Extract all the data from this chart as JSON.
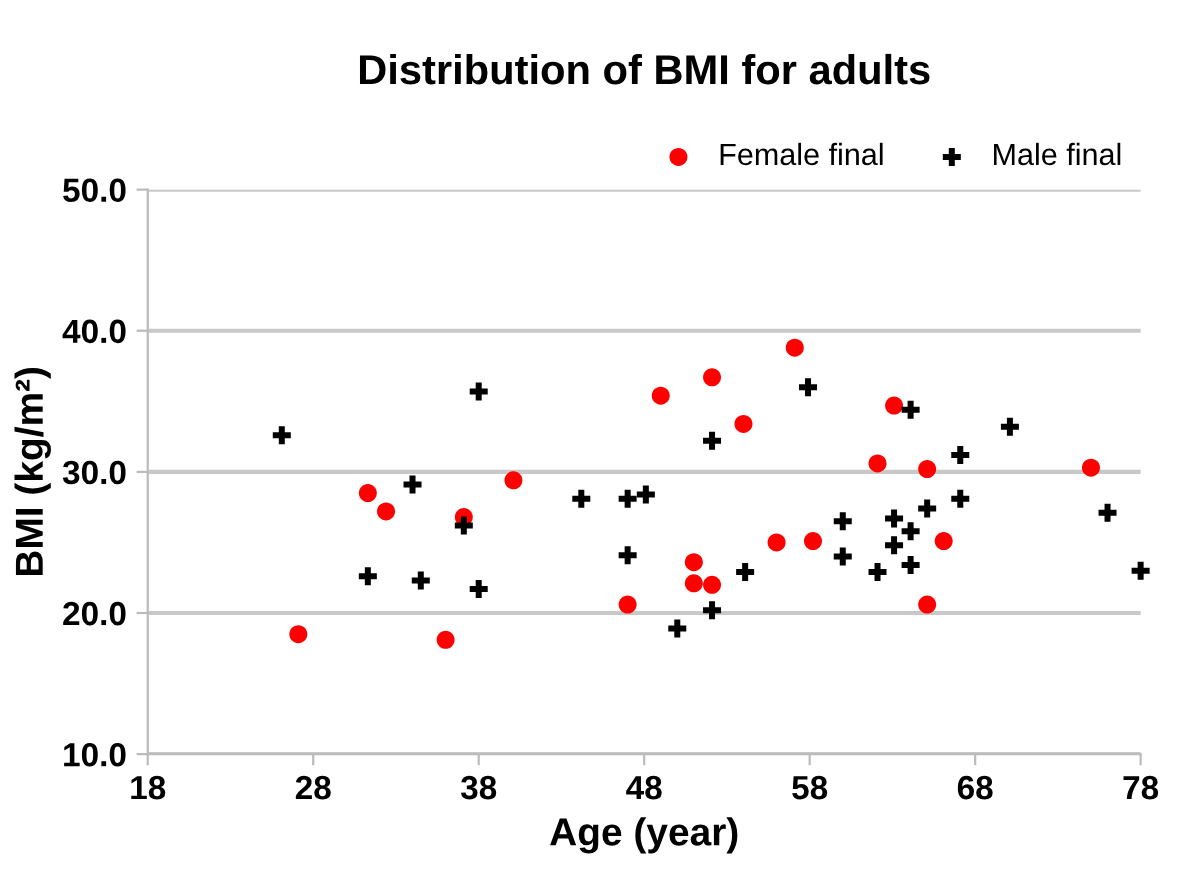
{
  "chart_data": {
    "type": "scatter",
    "title": "Distribution of BMI for adults",
    "xlabel": "Age (year)",
    "ylabel": "BMI (kg/m²)",
    "xlim": [
      18,
      78
    ],
    "ylim": [
      10,
      50
    ],
    "xticks": [
      18,
      28,
      38,
      48,
      58,
      68,
      78
    ],
    "yticks": [
      {
        "value": 10,
        "label": "10.0"
      },
      {
        "value": 20,
        "label": "20.0"
      },
      {
        "value": 30,
        "label": "30.0"
      },
      {
        "value": 40,
        "label": "40.0"
      },
      {
        "value": 50,
        "label": "50.0"
      }
    ],
    "grid": "y",
    "legend": "top right",
    "series": [
      {
        "name": "Female final",
        "color": "#ff0000",
        "marker": "circle",
        "x": [
          27.1,
          31.3,
          32.4,
          36.0,
          37.1,
          40.1,
          47.0,
          49.0,
          51.0,
          51.0,
          52.1,
          52.1,
          54.0,
          56.0,
          57.1,
          58.2,
          62.1,
          63.1,
          65.1,
          66.1,
          65.1,
          75.0
        ],
        "values": [
          18.5,
          28.5,
          27.2,
          18.1,
          26.8,
          29.4,
          20.6,
          35.4,
          23.6,
          22.1,
          36.7,
          22.0,
          33.4,
          25.0,
          38.8,
          25.1,
          30.6,
          34.7,
          30.2,
          25.1,
          20.6,
          30.3
        ]
      },
      {
        "name": "Male final",
        "color": "#000000",
        "marker": "cross",
        "x": [
          26.1,
          31.3,
          34.5,
          34.0,
          37.1,
          38.0,
          38.0,
          44.2,
          47.0,
          47.0,
          48.1,
          50.0,
          52.1,
          52.1,
          54.1,
          57.9,
          60.0,
          60.0,
          62.1,
          63.1,
          63.1,
          64.1,
          64.1,
          64.1,
          65.1,
          67.1,
          67.1,
          70.1,
          76.0,
          78.0
        ],
        "values": [
          32.6,
          22.6,
          22.3,
          29.1,
          26.2,
          35.7,
          21.7,
          28.1,
          28.1,
          24.1,
          28.4,
          18.9,
          32.2,
          20.2,
          22.9,
          36.0,
          26.5,
          24.0,
          22.9,
          26.7,
          24.8,
          34.4,
          25.8,
          23.4,
          27.4,
          31.2,
          28.1,
          33.2,
          27.1,
          23.0
        ]
      }
    ]
  }
}
